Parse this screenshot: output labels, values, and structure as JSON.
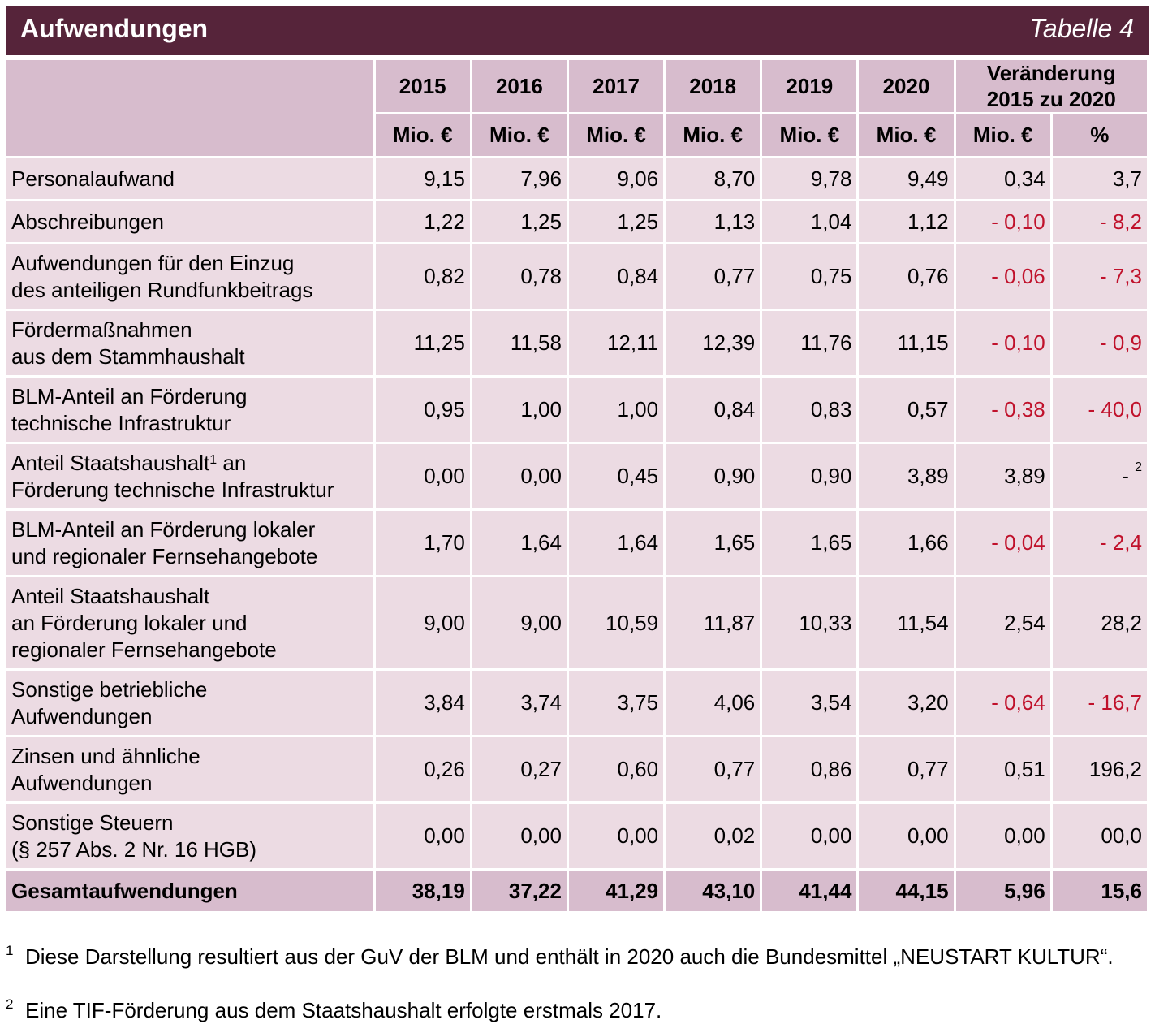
{
  "header": {
    "title": "Aufwendungen",
    "table_label": "Tabelle 4"
  },
  "columns": {
    "years": [
      "2015",
      "2016",
      "2017",
      "2018",
      "2019",
      "2020"
    ],
    "change_header_line1": "Veränderung",
    "change_header_line2": "2015 zu 2020",
    "unit_mio": "Mio. €",
    "unit_pct": "%"
  },
  "rows": [
    {
      "label": [
        "Personalaufwand"
      ],
      "values": [
        "9,15",
        "7,96",
        "9,06",
        "8,70",
        "9,78",
        "9,49",
        "0,34",
        "3,7"
      ]
    },
    {
      "label": [
        "Abschreibungen"
      ],
      "values": [
        "1,22",
        "1,25",
        "1,25",
        "1,13",
        "1,04",
        "1,12",
        "- 0,10",
        "- 8,2"
      ]
    },
    {
      "label": [
        "Aufwendungen für den Einzug",
        "des anteiligen Rundfunkbeitrags"
      ],
      "values": [
        "0,82",
        "0,78",
        "0,84",
        "0,77",
        "0,75",
        "0,76",
        "- 0,06",
        "- 7,3"
      ]
    },
    {
      "label": [
        "Fördermaßnahmen",
        "aus dem Stammhaushalt"
      ],
      "values": [
        "11,25",
        "11,58",
        "12,11",
        "12,39",
        "11,76",
        "11,15",
        "- 0,10",
        "- 0,9"
      ]
    },
    {
      "label": [
        "BLM-Anteil an Förderung",
        "technische Infrastruktur"
      ],
      "values": [
        "0,95",
        "1,00",
        "1,00",
        "0,84",
        "0,83",
        "0,57",
        "- 0,38",
        "- 40,0"
      ]
    },
    {
      "label": [
        "Anteil Staatshaushalt",
        "an",
        "Förderung technische Infrastruktur"
      ],
      "label_sup": "1",
      "values": [
        "0,00",
        "0,00",
        "0,45",
        "0,90",
        "0,90",
        "3,89",
        "3,89",
        "- "
      ],
      "pct_sup": "2"
    },
    {
      "label": [
        "BLM-Anteil an Förderung lokaler",
        "und regionaler Fernsehangebote"
      ],
      "values": [
        "1,70",
        "1,64",
        "1,64",
        "1,65",
        "1,65",
        "1,66",
        "- 0,04",
        "- 2,4"
      ]
    },
    {
      "label": [
        "Anteil Staatshaushalt",
        "an Förderung lokaler und",
        "regionaler Fernsehangebote"
      ],
      "values": [
        "9,00",
        "9,00",
        "10,59",
        "11,87",
        "10,33",
        "11,54",
        "2,54",
        "28,2"
      ]
    },
    {
      "label": [
        "Sonstige betriebliche",
        "Aufwendungen"
      ],
      "values": [
        "3,84",
        "3,74",
        "3,75",
        "4,06",
        "3,54",
        "3,20",
        "- 0,64",
        "- 16,7"
      ]
    },
    {
      "label": [
        "Zinsen und ähnliche",
        "Aufwendungen"
      ],
      "values": [
        "0,26",
        "0,27",
        "0,60",
        "0,77",
        "0,86",
        "0,77",
        "0,51",
        "196,2"
      ]
    },
    {
      "label": [
        "Sonstige Steuern",
        "(§ 257 Abs. 2 Nr. 16 HGB)"
      ],
      "values": [
        "0,00",
        "0,00",
        "0,00",
        "0,02",
        "0,00",
        "0,00",
        "0,00",
        "00,0"
      ]
    }
  ],
  "total": {
    "label": "Gesamtaufwendungen",
    "values": [
      "38,19",
      "37,22",
      "41,29",
      "43,10",
      "41,44",
      "44,15",
      "5,96",
      "15,6"
    ]
  },
  "footnotes": [
    {
      "num": "1",
      "text": "Diese Darstellung resultiert aus der GuV der BLM und enthält in 2020 auch die Bundesmittel „NEUSTART KULTUR“."
    },
    {
      "num": "2",
      "text": "Eine TIF-Förderung aus dem Staatshaushalt erfolgte erstmals 2017."
    }
  ],
  "colors": {
    "title_bg": "#56243a",
    "header_bg": "#d7bccd",
    "row_bg": "#ecdbe3",
    "negative": "#c0112b"
  }
}
